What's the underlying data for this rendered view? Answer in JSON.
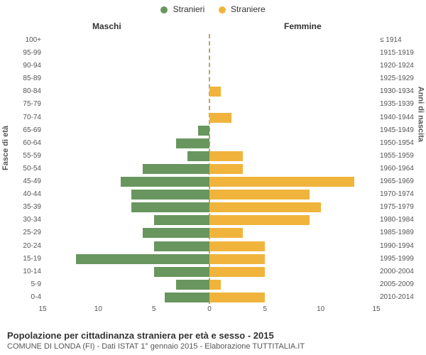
{
  "legend": {
    "male": {
      "label": "Stranieri",
      "color": "#69965f"
    },
    "female": {
      "label": "Straniere",
      "color": "#f0b43c"
    }
  },
  "columns": {
    "male": "Maschi",
    "female": "Femmine"
  },
  "axis": {
    "left": "Fasce di età",
    "right": "Anni di nascita",
    "xmax": 15,
    "xticks": [
      15,
      10,
      5,
      0,
      5,
      10,
      15
    ]
  },
  "footer": {
    "title": "Popolazione per cittadinanza straniera per età e sesso - 2015",
    "sub": "COMUNE DI LONDA (FI) - Dati ISTAT 1° gennaio 2015 - Elaborazione TUTTITALIA.IT"
  },
  "center_line_color": "#c0a060",
  "background_color": "#ffffff",
  "label_color": "#555555",
  "tick_fontsize": 10,
  "rows": [
    {
      "age": "100+",
      "birth": "≤ 1914",
      "m": 0,
      "f": 0
    },
    {
      "age": "95-99",
      "birth": "1915-1919",
      "m": 0,
      "f": 0
    },
    {
      "age": "90-94",
      "birth": "1920-1924",
      "m": 0,
      "f": 0
    },
    {
      "age": "85-89",
      "birth": "1925-1929",
      "m": 0,
      "f": 0
    },
    {
      "age": "80-84",
      "birth": "1930-1934",
      "m": 0,
      "f": 1
    },
    {
      "age": "75-79",
      "birth": "1935-1939",
      "m": 0,
      "f": 0
    },
    {
      "age": "70-74",
      "birth": "1940-1944",
      "m": 0,
      "f": 2
    },
    {
      "age": "65-69",
      "birth": "1945-1949",
      "m": 1,
      "f": 0
    },
    {
      "age": "60-64",
      "birth": "1950-1954",
      "m": 3,
      "f": 0
    },
    {
      "age": "55-59",
      "birth": "1955-1959",
      "m": 2,
      "f": 3
    },
    {
      "age": "50-54",
      "birth": "1960-1964",
      "m": 6,
      "f": 3
    },
    {
      "age": "45-49",
      "birth": "1965-1969",
      "m": 8,
      "f": 13
    },
    {
      "age": "40-44",
      "birth": "1970-1974",
      "m": 7,
      "f": 9
    },
    {
      "age": "35-39",
      "birth": "1975-1979",
      "m": 7,
      "f": 10
    },
    {
      "age": "30-34",
      "birth": "1980-1984",
      "m": 5,
      "f": 9
    },
    {
      "age": "25-29",
      "birth": "1985-1989",
      "m": 6,
      "f": 3
    },
    {
      "age": "20-24",
      "birth": "1990-1994",
      "m": 5,
      "f": 5
    },
    {
      "age": "15-19",
      "birth": "1995-1999",
      "m": 12,
      "f": 5
    },
    {
      "age": "10-14",
      "birth": "2000-2004",
      "m": 5,
      "f": 5
    },
    {
      "age": "5-9",
      "birth": "2005-2009",
      "m": 3,
      "f": 1
    },
    {
      "age": "0-4",
      "birth": "2010-2014",
      "m": 4,
      "f": 5
    }
  ]
}
